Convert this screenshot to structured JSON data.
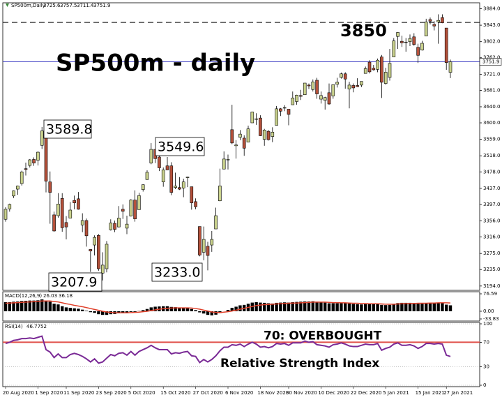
{
  "chart_data": [
    {
      "type": "candlestick",
      "title": "SP500m,Daily",
      "headline": "SP500m - daily",
      "categories": [
        "20 Aug 2020",
        null,
        null,
        null,
        null,
        null,
        null,
        null,
        "1 Sep 2020",
        null,
        null,
        null,
        null,
        null,
        null,
        "11 Sep 2020",
        null,
        null,
        null,
        null,
        null,
        null,
        null,
        "23 Sep 2020",
        null,
        null,
        null,
        null,
        null,
        null,
        null,
        "5 Oct 2020",
        null,
        null,
        null,
        null,
        null,
        null,
        null,
        "15 Oct 2020",
        null,
        null,
        null,
        null,
        null,
        null,
        null,
        "27 Oct 2020",
        null,
        null,
        null,
        null,
        null,
        null,
        null,
        "6 Nov 2020",
        null,
        null,
        null,
        null,
        null,
        null,
        null,
        "18 Nov 2020",
        null,
        null,
        null,
        null,
        null,
        null,
        "30 Nov 2020",
        null,
        null,
        null,
        null,
        null,
        null,
        null,
        "10 Dec 2020",
        null,
        null,
        null,
        null,
        null,
        null,
        null,
        "22 Dec 2020",
        null,
        null,
        null,
        null,
        null,
        null,
        null,
        "5 Jan 2021",
        null,
        null,
        null,
        null,
        null,
        null,
        null,
        "15 Jan 2021",
        null,
        null,
        null,
        null,
        null,
        null,
        "27 Jan 2021",
        null
      ],
      "open": [
        3360,
        3386,
        3418,
        3435,
        3449,
        3486,
        3494,
        3509,
        3507,
        3544,
        3564,
        3453,
        3371,
        3369,
        3412,
        3352,
        3363,
        3407,
        3411,
        3346,
        3357,
        3285,
        3296,
        3320,
        3226,
        3237,
        3334,
        3350,
        3341,
        3385,
        3338,
        3368,
        3408,
        3384,
        3434,
        3459,
        3500,
        3534,
        3515,
        3453,
        3493,
        3493,
        3439,
        3439,
        3438,
        3464,
        3441,
        3404,
        3342,
        3278,
        3293,
        3296,
        3336,
        3406,
        3485,
        3508,
        3583,
        3543,
        3564,
        3562,
        3552,
        3600,
        3610,
        3612,
        3559,
        3579,
        3566,
        3594,
        3635,
        3638,
        3634,
        3645,
        3653,
        3668,
        3670,
        3694,
        3683,
        3706,
        3659,
        3656,
        3675,
        3667,
        3696,
        3713,
        3722,
        3684,
        3693,
        3693,
        3694,
        3723,
        3751,
        3736,
        3733,
        3764,
        3698,
        3713,
        3764,
        3815,
        3803,
        3801,
        3802,
        3814,
        3788,
        3781,
        3816,
        3857,
        3845,
        3851,
        3862,
        3836,
        3725.6
      ],
      "high": [
        3390,
        3399,
        3432,
        3444,
        3481,
        3501,
        3510,
        3514,
        3529,
        3589.8,
        3564,
        3479,
        3379,
        3425,
        3425,
        3368,
        3403,
        3419,
        3428,
        3375,
        3362,
        3286,
        3320,
        3323,
        3278,
        3306,
        3360,
        3357,
        3393,
        3397,
        3369,
        3410,
        3432,
        3426,
        3447,
        3482,
        3549.6,
        3534,
        3527,
        3489,
        3515,
        3502,
        3476,
        3465,
        3461,
        3466,
        3441,
        3412,
        3342,
        3342,
        3304,
        3331,
        3389,
        3486,
        3529,
        3521,
        3645,
        3557,
        3582,
        3569,
        3593,
        3628,
        3624,
        3619,
        3585,
        3582,
        3589,
        3642,
        3637,
        3644,
        3634,
        3678,
        3670,
        3682,
        3699,
        3698,
        3708,
        3712,
        3678,
        3665,
        3698,
        3695,
        3712,
        3725,
        3726,
        3702,
        3698,
        3711,
        3703,
        3740,
        3756,
        3744,
        3760,
        3769,
        3737,
        3784,
        3811,
        3826,
        3817,
        3811,
        3820,
        3823,
        3797,
        3804,
        3859,
        3862,
        3853,
        3870,
        3870,
        3836,
        3757.5
      ],
      "low": [
        3354,
        3379,
        3413,
        3421,
        3444,
        3469,
        3489,
        3493,
        3494,
        3535,
        3427,
        3349,
        3329,
        3364,
        3329,
        3310,
        3363,
        3385,
        3384,
        3328,
        3292,
        3229,
        3270,
        3232,
        3207.9,
        3228,
        3332,
        3328,
        3340,
        3361,
        3323,
        3367,
        3354,
        3384,
        3429,
        3458,
        3497,
        3500,
        3480,
        3441,
        3482,
        3420,
        3435,
        3433,
        3415,
        3440,
        3384,
        3385,
        3268,
        3258,
        3233,
        3279,
        3336,
        3405,
        3485,
        3484,
        3547,
        3511,
        3557,
        3518,
        3552,
        3600,
        3595,
        3567,
        3543,
        3556,
        3552,
        3594,
        3617,
        3629,
        3594,
        3645,
        3645,
        3657,
        3670,
        3684,
        3678,
        3660,
        3648,
        3633,
        3645,
        3660,
        3688,
        3710,
        3685,
        3636,
        3676,
        3689,
        3689,
        3723,
        3723,
        3730,
        3726,
        3662,
        3695,
        3705,
        3764,
        3784,
        3789,
        3777,
        3791,
        3792,
        3749,
        3780,
        3816,
        3845,
        3830,
        3797,
        3848,
        3732,
        3711.4
      ],
      "close": [
        3385,
        3397,
        3431,
        3443,
        3478,
        3484,
        3508,
        3500,
        3527,
        3580,
        3455,
        3427,
        3331,
        3398,
        3339,
        3341,
        3383,
        3401,
        3385,
        3357,
        3319,
        3281,
        3315,
        3237,
        3246,
        3298,
        3351,
        3335,
        3363,
        3380,
        3348,
        3408,
        3361,
        3419,
        3446,
        3477,
        3534,
        3511,
        3488,
        3483,
        3483,
        3427,
        3443,
        3435,
        3453,
        3465,
        3401,
        3391,
        3271,
        3310,
        3270,
        3310,
        3369,
        3443,
        3510,
        3509,
        3550,
        3545,
        3572,
        3537,
        3585,
        3627,
        3610,
        3568,
        3582,
        3558,
        3577,
        3635,
        3629,
        3638,
        3621,
        3662,
        3669,
        3666,
        3699,
        3692,
        3702,
        3672,
        3668,
        3663,
        3647,
        3695,
        3701,
        3722,
        3709,
        3694,
        3687,
        3690,
        3703,
        3735,
        3727,
        3732,
        3756,
        3701,
        3726,
        3748,
        3804,
        3825,
        3799,
        3801,
        3810,
        3795,
        3768,
        3798,
        3851,
        3853,
        3841,
        3855,
        3849,
        3750,
        3751.9
      ],
      "up_color": "#c9d18c",
      "down_color": "#b4503a",
      "ylim": [
        3185,
        3897
      ],
      "yticks": [
        {
          "value": 3884,
          "label": "3884.0"
        },
        {
          "value": 3843,
          "label": "3843.0"
        },
        {
          "value": 3802,
          "label": "3802.0"
        },
        {
          "value": 3762,
          "label": "3762.0"
        },
        {
          "value": 3721,
          "label": "3721.0"
        },
        {
          "value": 3681,
          "label": "3681.0"
        },
        {
          "value": 3640,
          "label": "3640.0"
        },
        {
          "value": 3600,
          "label": "3600.0"
        },
        {
          "value": 3559,
          "label": "3559.0"
        },
        {
          "value": 3518,
          "label": "3518.0"
        },
        {
          "value": 3478,
          "label": "3478.0"
        },
        {
          "value": 3437,
          "label": "3437.0"
        },
        {
          "value": 3397,
          "label": "3397.0"
        },
        {
          "value": 3356,
          "label": "3356.0"
        },
        {
          "value": 3316,
          "label": "3316.0"
        },
        {
          "value": 3275,
          "label": "3275.0"
        },
        {
          "value": 3235,
          "label": "3235.0"
        },
        {
          "value": 3194,
          "label": "3194.0"
        }
      ],
      "resistance": 3850,
      "last_price": 3751.9,
      "last_price_color": "#3030c0",
      "callouts": [
        "3589.8",
        "3549.6",
        "3207.9",
        "3233.0"
      ]
    },
    {
      "type": "macd",
      "title": "MACD(12,26,9)",
      "values": [
        40,
        40,
        42,
        43,
        45,
        46,
        47,
        47,
        48,
        52,
        47,
        42,
        33,
        30,
        22,
        17,
        15,
        13,
        11,
        7,
        2,
        -4,
        -7,
        -13,
        -16,
        -16,
        -13,
        -12,
        -9,
        -7,
        -7,
        -3,
        -3,
        1,
        5,
        10,
        17,
        20,
        21,
        22,
        22,
        19,
        18,
        16,
        16,
        16,
        10,
        5,
        -5,
        -10,
        -16,
        -18,
        -15,
        -8,
        0,
        6,
        15,
        20,
        26,
        28,
        33,
        38,
        40,
        38,
        37,
        35,
        34,
        37,
        38,
        39,
        38,
        40,
        41,
        42,
        43,
        43,
        44,
        42,
        40,
        38,
        35,
        35,
        35,
        36,
        35,
        34,
        32,
        31,
        30,
        31,
        31,
        31,
        32,
        28,
        27,
        28,
        32,
        36,
        37,
        37,
        37,
        36,
        33,
        33,
        36,
        37,
        38,
        37,
        36,
        29,
        26.03
      ],
      "signal": [
        35,
        36,
        37,
        38,
        39,
        40,
        41,
        42,
        43,
        45,
        45,
        45,
        43,
        41,
        37,
        33,
        30,
        26,
        23,
        20,
        16,
        12,
        8,
        4,
        0,
        -3,
        -5,
        -7,
        -7,
        -7,
        -7,
        -6,
        -5,
        -4,
        -2,
        0,
        3,
        6,
        9,
        11,
        13,
        14,
        15,
        15,
        15,
        15,
        14,
        12,
        9,
        5,
        1,
        -3,
        -5,
        -6,
        -4,
        -2,
        1,
        5,
        9,
        13,
        17,
        21,
        25,
        27,
        29,
        30,
        31,
        32,
        33,
        34,
        35,
        36,
        36,
        37,
        38,
        39,
        40,
        40,
        40,
        40,
        39,
        38,
        38,
        37,
        37,
        36,
        35,
        35,
        34,
        34,
        33,
        33,
        33,
        32,
        31,
        31,
        31,
        32,
        33,
        33,
        34,
        34,
        35,
        35,
        35,
        36,
        36,
        37,
        37,
        37,
        36.18
      ],
      "color": "#000000",
      "signal_color": "#e0402a",
      "ylim": [
        -33.83,
        76.59
      ],
      "yticks": [
        76.59,
        {
          "value": 0,
          "label": "0.00"
        },
        -33.83
      ]
    },
    {
      "type": "rsi",
      "title": "RSI(14)",
      "values": [
        68,
        70,
        73,
        74,
        76,
        76,
        77,
        76,
        78,
        80,
        58,
        54,
        45,
        51,
        45,
        45,
        50,
        52,
        50,
        47,
        43,
        38,
        43,
        36,
        38,
        44,
        50,
        48,
        52,
        53,
        49,
        55,
        49,
        55,
        58,
        61,
        65,
        61,
        58,
        58,
        58,
        51,
        53,
        52,
        54,
        55,
        48,
        47,
        37,
        42,
        38,
        42,
        48,
        56,
        62,
        62,
        66,
        65,
        67,
        63,
        67,
        70,
        67,
        62,
        63,
        61,
        63,
        68,
        67,
        68,
        65,
        69,
        69,
        69,
        72,
        70,
        71,
        66,
        65,
        64,
        62,
        66,
        67,
        69,
        67,
        64,
        63,
        63,
        65,
        67,
        66,
        66,
        68,
        57,
        60,
        62,
        67,
        69,
        65,
        65,
        66,
        64,
        60,
        63,
        68,
        68,
        67,
        68,
        67,
        49,
        46.7752
      ],
      "color": "#7a2a96",
      "ylim": [
        0,
        100
      ],
      "yticks": [
        100,
        70,
        30,
        0
      ],
      "grid": true,
      "overbought": 70,
      "overbought_label": "70: OVERBOUGHT",
      "overbought_color": "#e0504a",
      "annotation": "Relative Strength Index"
    }
  ]
}
